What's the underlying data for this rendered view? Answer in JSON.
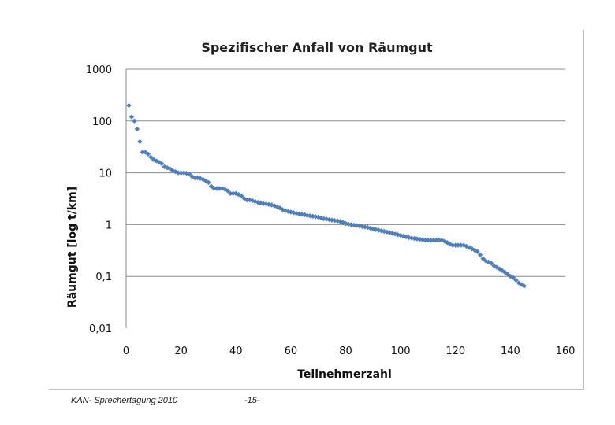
{
  "chart_data": {
    "type": "scatter",
    "title": "Spezifischer Anfall von Räumgut",
    "xlabel": "Teilnehmerzahl",
    "ylabel": "Räumgut [log t/km]",
    "y_scale": "log",
    "xlim": [
      0,
      160
    ],
    "ylim": [
      0.01,
      1000
    ],
    "x_ticks": [
      "0",
      "20",
      "40",
      "60",
      "80",
      "100",
      "120",
      "140",
      "160"
    ],
    "y_ticks": [
      "1000",
      "100",
      "10",
      "1",
      "0,1",
      "0,01"
    ],
    "grid": "horizontal",
    "marker_color": "#4f7fbd",
    "series": [
      {
        "points": [
          [
            1,
            200
          ],
          [
            2,
            120
          ],
          [
            3,
            100
          ],
          [
            4,
            70
          ],
          [
            5,
            40
          ],
          [
            6,
            25
          ],
          [
            7,
            25
          ],
          [
            8,
            23
          ],
          [
            9,
            20
          ],
          [
            10,
            18
          ],
          [
            11,
            17
          ],
          [
            12,
            16
          ],
          [
            13,
            15
          ],
          [
            14,
            13
          ],
          [
            15,
            12.5
          ],
          [
            16,
            12
          ],
          [
            17,
            11
          ],
          [
            18,
            10.5
          ],
          [
            19,
            10
          ],
          [
            20,
            10
          ],
          [
            21,
            10
          ],
          [
            22,
            9.8
          ],
          [
            23,
            9.5
          ],
          [
            24,
            8.5
          ],
          [
            25,
            8
          ],
          [
            26,
            8
          ],
          [
            27,
            7.8
          ],
          [
            28,
            7.5
          ],
          [
            29,
            7
          ],
          [
            30,
            6.5
          ],
          [
            31,
            5.5
          ],
          [
            32,
            5
          ],
          [
            33,
            5
          ],
          [
            34,
            5
          ],
          [
            35,
            5
          ],
          [
            36,
            4.8
          ],
          [
            37,
            4.5
          ],
          [
            38,
            4
          ],
          [
            39,
            4
          ],
          [
            40,
            4
          ],
          [
            41,
            3.8
          ],
          [
            42,
            3.6
          ],
          [
            43,
            3.2
          ],
          [
            44,
            3
          ],
          [
            45,
            3
          ],
          [
            46,
            2.9
          ],
          [
            47,
            2.8
          ],
          [
            48,
            2.7
          ],
          [
            49,
            2.6
          ],
          [
            50,
            2.55
          ],
          [
            51,
            2.5
          ],
          [
            52,
            2.45
          ],
          [
            53,
            2.4
          ],
          [
            54,
            2.3
          ],
          [
            55,
            2.2
          ],
          [
            56,
            2.1
          ],
          [
            57,
            1.95
          ],
          [
            58,
            1.85
          ],
          [
            59,
            1.8
          ],
          [
            60,
            1.75
          ],
          [
            61,
            1.7
          ],
          [
            62,
            1.65
          ],
          [
            63,
            1.6
          ],
          [
            64,
            1.58
          ],
          [
            65,
            1.55
          ],
          [
            66,
            1.5
          ],
          [
            67,
            1.48
          ],
          [
            68,
            1.45
          ],
          [
            69,
            1.42
          ],
          [
            70,
            1.4
          ],
          [
            71,
            1.35
          ],
          [
            72,
            1.3
          ],
          [
            73,
            1.28
          ],
          [
            74,
            1.25
          ],
          [
            75,
            1.22
          ],
          [
            76,
            1.2
          ],
          [
            77,
            1.18
          ],
          [
            78,
            1.15
          ],
          [
            79,
            1.1
          ],
          [
            80,
            1.05
          ],
          [
            81,
            1.02
          ],
          [
            82,
            1.0
          ],
          [
            83,
            0.98
          ],
          [
            84,
            0.96
          ],
          [
            85,
            0.94
          ],
          [
            86,
            0.92
          ],
          [
            87,
            0.9
          ],
          [
            88,
            0.88
          ],
          [
            89,
            0.85
          ],
          [
            90,
            0.82
          ],
          [
            91,
            0.8
          ],
          [
            92,
            0.78
          ],
          [
            93,
            0.76
          ],
          [
            94,
            0.74
          ],
          [
            95,
            0.72
          ],
          [
            96,
            0.7
          ],
          [
            97,
            0.68
          ],
          [
            98,
            0.66
          ],
          [
            99,
            0.64
          ],
          [
            100,
            0.62
          ],
          [
            101,
            0.6
          ],
          [
            102,
            0.58
          ],
          [
            103,
            0.56
          ],
          [
            104,
            0.55
          ],
          [
            105,
            0.54
          ],
          [
            106,
            0.53
          ],
          [
            107,
            0.52
          ],
          [
            108,
            0.51
          ],
          [
            109,
            0.5
          ],
          [
            110,
            0.5
          ],
          [
            111,
            0.5
          ],
          [
            112,
            0.5
          ],
          [
            113,
            0.5
          ],
          [
            114,
            0.5
          ],
          [
            115,
            0.5
          ],
          [
            116,
            0.48
          ],
          [
            117,
            0.45
          ],
          [
            118,
            0.42
          ],
          [
            119,
            0.4
          ],
          [
            120,
            0.4
          ],
          [
            121,
            0.4
          ],
          [
            122,
            0.4
          ],
          [
            123,
            0.4
          ],
          [
            124,
            0.38
          ],
          [
            125,
            0.36
          ],
          [
            126,
            0.34
          ],
          [
            127,
            0.32
          ],
          [
            128,
            0.3
          ],
          [
            129,
            0.26
          ],
          [
            130,
            0.22
          ],
          [
            131,
            0.2
          ],
          [
            132,
            0.19
          ],
          [
            133,
            0.18
          ],
          [
            134,
            0.16
          ],
          [
            135,
            0.15
          ],
          [
            136,
            0.14
          ],
          [
            137,
            0.13
          ],
          [
            138,
            0.12
          ],
          [
            139,
            0.11
          ],
          [
            140,
            0.1
          ],
          [
            141,
            0.095
          ],
          [
            142,
            0.085
          ],
          [
            143,
            0.075
          ],
          [
            144,
            0.07
          ],
          [
            145,
            0.065
          ]
        ]
      }
    ]
  },
  "footer": {
    "left_text": "KAN- Sprechertagung 2010",
    "page_number": "-15-"
  }
}
